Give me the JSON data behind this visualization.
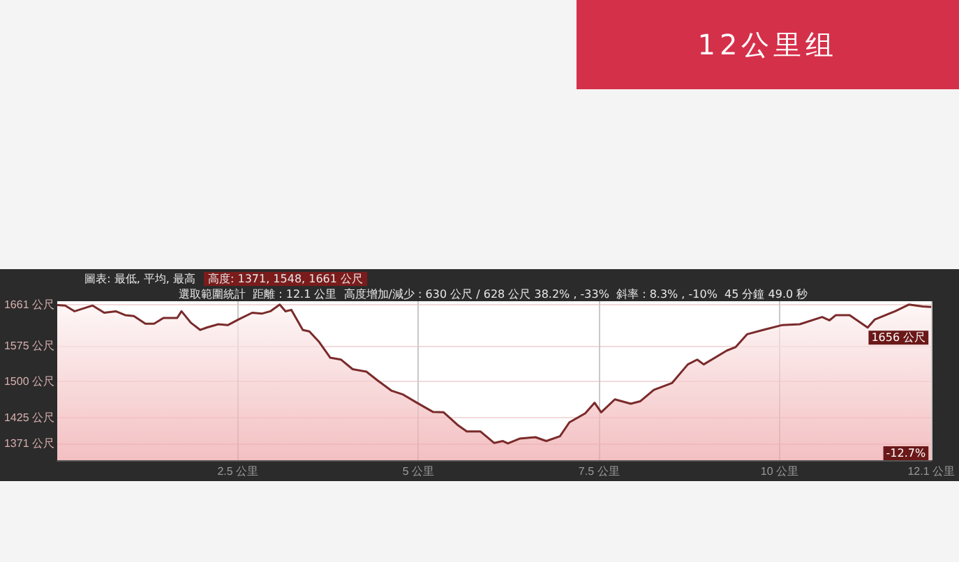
{
  "chart_data": {
    "type": "area",
    "title": "12公里组",
    "annotations": [
      "圖表: 最低, 平均, 最高",
      "高度: 1371, 1548, 1661 公尺",
      "選取範圍統計  距離 : 12.1 公里  高度增加/減少 : 630 公尺 / 628 公尺 38.2% , -33%  斜率 : 8.3% , -10%  45 分鐘 49.0 秒",
      {
        "text": "1656 公尺",
        "x": 12.1,
        "y": 1656
      },
      {
        "text": "-12.7%",
        "x": 12.1,
        "y": 1336
      }
    ],
    "x": [
      0,
      0.11,
      0.24,
      0.49,
      0.65,
      0.81,
      0.94,
      1.06,
      1.22,
      1.34,
      1.47,
      1.66,
      1.72,
      1.85,
      1.98,
      2.07,
      2.23,
      2.36,
      2.51,
      2.7,
      2.83,
      2.95,
      3.08,
      3.16,
      3.24,
      3.4,
      3.49,
      3.62,
      3.78,
      3.93,
      4.09,
      4.28,
      4.44,
      4.63,
      4.79,
      4.98,
      5.2,
      5.35,
      5.54,
      5.67,
      5.86,
      6.05,
      6.17,
      6.24,
      6.4,
      6.62,
      6.77,
      6.96,
      7.09,
      7.31,
      7.44,
      7.53,
      7.72,
      7.94,
      8.07,
      8.26,
      8.51,
      8.73,
      8.86,
      8.95,
      9.27,
      9.39,
      9.55,
      9.77,
      10.03,
      10.28,
      10.59,
      10.69,
      10.78,
      10.97,
      11.22,
      11.32,
      11.6,
      11.79,
      11.98,
      12.1
    ],
    "series": [
      {
        "color": "#7a2a2a",
        "values": [
          1660,
          1659,
          1647,
          1659,
          1644,
          1647,
          1639,
          1637,
          1621,
          1621,
          1633,
          1633,
          1647,
          1623,
          1608,
          1613,
          1620,
          1618,
          1630,
          1644,
          1642,
          1647,
          1661,
          1647,
          1650,
          1608,
          1605,
          1584,
          1550,
          1546,
          1526,
          1521,
          1502,
          1481,
          1473,
          1456,
          1437,
          1436,
          1410,
          1396,
          1396,
          1372,
          1376,
          1371,
          1381,
          1384,
          1376,
          1386,
          1415,
          1434,
          1456,
          1436,
          1463,
          1454,
          1459,
          1483,
          1497,
          1536,
          1546,
          1536,
          1565,
          1572,
          1599,
          1608,
          1618,
          1620,
          1635,
          1628,
          1639,
          1639,
          1613,
          1630,
          1647,
          1661,
          1657,
          1656
        ]
      }
    ],
    "xlim": [
      0,
      12.1
    ],
    "xticks": [
      {
        "value": 2.5,
        "label": "2.5 公里"
      },
      {
        "value": 5,
        "label": "5 公里"
      },
      {
        "value": 7.5,
        "label": "7.5 公里"
      },
      {
        "value": 10,
        "label": "10 公里"
      },
      {
        "value": 12.1,
        "label": "12.1 公里"
      }
    ],
    "ylim": [
      1336,
      1668
    ],
    "yticks": [
      {
        "value": 1371,
        "label": "1371 公尺"
      },
      {
        "value": 1425,
        "label": "1425 公尺"
      },
      {
        "value": 1500,
        "label": "1500 公尺"
      },
      {
        "value": 1575,
        "label": "1575 公尺"
      },
      {
        "value": 1661,
        "label": "1661 公尺"
      }
    ],
    "grid": true,
    "marker": "none",
    "line_style": "solid"
  }
}
